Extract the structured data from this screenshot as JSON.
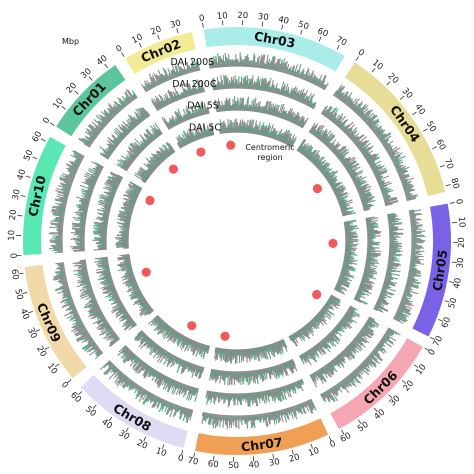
{
  "chart_data": {
    "type": "circos",
    "unit_label": "Mbp",
    "chromosomes": [
      {
        "name": "Chr01",
        "length": 44,
        "color": "#5cc59b"
      },
      {
        "name": "Chr02",
        "length": 37,
        "color": "#f3ec97"
      },
      {
        "name": "Chr03",
        "length": 75,
        "color": "#a9ece8"
      },
      {
        "name": "Chr04",
        "length": 83,
        "color": "#e8dd96"
      },
      {
        "name": "Chr05",
        "length": 70,
        "color": "#7a62e6"
      },
      {
        "name": "Chr06",
        "length": 61,
        "color": "#f5a6b3"
      },
      {
        "name": "Chr07",
        "length": 70,
        "color": "#f0a054"
      },
      {
        "name": "Chr08",
        "length": 62,
        "color": "#dedcf2"
      },
      {
        "name": "Chr09",
        "length": 63,
        "color": "#f2d9a9"
      },
      {
        "name": "Chr10",
        "length": 63,
        "color": "#59e8b4"
      }
    ],
    "tick_step": 10,
    "tracks": [
      "DAI 200S",
      "DAI 200C",
      "DAI 5S",
      "DAI 5C"
    ],
    "track_colors": {
      "bars": "#8c8c8c",
      "highlight": "#4fc38a",
      "line": "#4aa884"
    },
    "centromeres": [
      {
        "chr": "Chr01",
        "pos": 31
      },
      {
        "chr": "Chr02",
        "pos": 18
      },
      {
        "chr": "Chr03",
        "pos": 10
      },
      {
        "chr": "Chr04",
        "pos": 45
      },
      {
        "chr": "Chr05",
        "pos": 22
      },
      {
        "chr": "Chr06",
        "pos": 8
      },
      {
        "chr": "Chr07",
        "pos": 62
      },
      {
        "chr": "Chr08",
        "pos": 26
      },
      {
        "chr": "Chr09",
        "pos": 40
      },
      {
        "chr": "Chr10",
        "pos": 55
      }
    ],
    "centromere_color": "#f05a5a",
    "centromere_label": "Centromeric\nregion"
  }
}
